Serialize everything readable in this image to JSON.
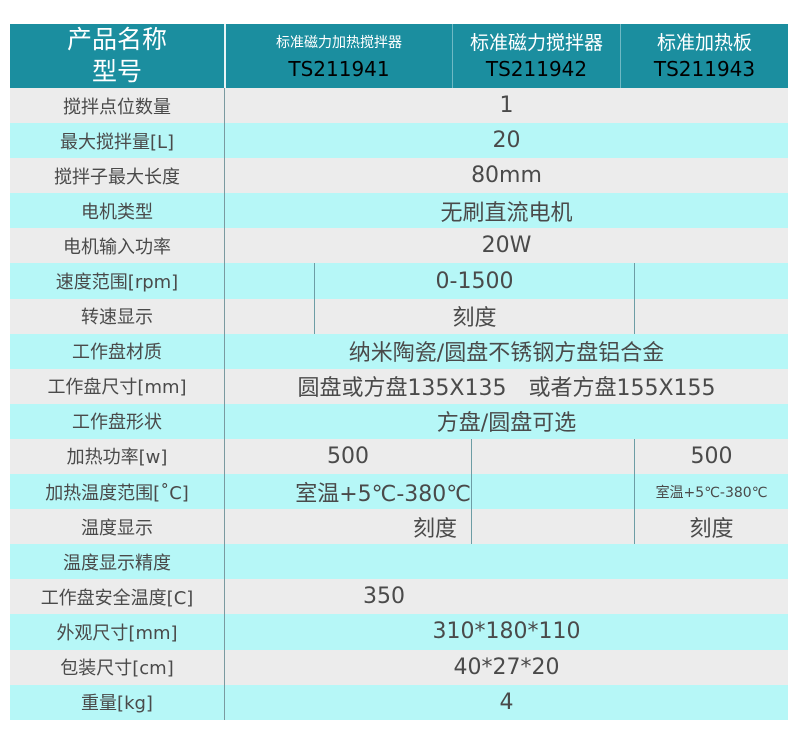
{
  "header": {
    "label_line1": "产品名称",
    "label_line2": "型号",
    "products": [
      {
        "name": "标准磁力加热搅拌器",
        "model": "TS211941"
      },
      {
        "name": "标准磁力搅拌器",
        "model": "TS211942"
      },
      {
        "name": "标准加热板",
        "model": "TS211943"
      }
    ]
  },
  "rows": [
    {
      "label": "搅拌点位数量",
      "values": [
        "1"
      ]
    },
    {
      "label": "最大搅拌量[L]",
      "values": [
        "20"
      ]
    },
    {
      "label": "搅拌子最大长度",
      "values": [
        "80mm"
      ]
    },
    {
      "label": "电机类型",
      "values": [
        "无刷直流电机"
      ]
    },
    {
      "label": "电机输入功率",
      "values": [
        "20W"
      ]
    },
    {
      "label": "速度范围[rpm]",
      "values": [
        "0-1500"
      ]
    },
    {
      "label": "转速显示",
      "values": [
        "刻度"
      ]
    },
    {
      "label": "工作盘材质",
      "values": [
        "纳米陶瓷/圆盘不锈钢方盘铝合金"
      ]
    },
    {
      "label": "工作盘尺寸[mm]",
      "values": [
        "圆盘或方盘135X135　或者方盘155X155"
      ]
    },
    {
      "label": "工作盘形状",
      "values": [
        "方盘/圆盘可选"
      ]
    },
    {
      "label": "加热功率[w]",
      "values": [
        "500",
        "500"
      ]
    },
    {
      "label": "加热温度范围[˚C]",
      "values": [
        "室温+5℃-380℃",
        "室温+5℃-380℃"
      ]
    },
    {
      "label": "温度显示",
      "values": [
        "刻度",
        "刻度"
      ]
    },
    {
      "label": "温度显示精度",
      "values": []
    },
    {
      "label": "工作盘安全温度[C]",
      "values": [
        "350"
      ]
    },
    {
      "label": "外观尺寸[mm]",
      "values": [
        "310*180*110"
      ]
    },
    {
      "label": "包装尺寸[cm]",
      "values": [
        "40*27*20"
      ]
    },
    {
      "label": "重量[kg]",
      "values": [
        "4"
      ]
    }
  ],
  "colors": {
    "header": "#1b8e9f",
    "row_gray": "#ececec",
    "row_cyan": "#b6f7f7"
  }
}
